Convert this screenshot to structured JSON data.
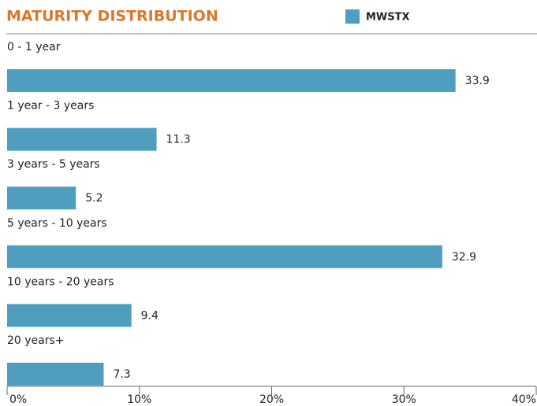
{
  "chart_data": {
    "type": "barh",
    "title": "MATURITY DISTRIBUTION",
    "categories": [
      "0 - 1 year",
      "1 year - 3 years",
      "3 years - 5 years",
      "5 years - 10 years",
      "10 years - 20 years",
      "20 years+"
    ],
    "series": [
      {
        "name": "MWSTX",
        "color": "#4f9dbf",
        "values": [
          33.9,
          11.3,
          5.2,
          32.9,
          9.4,
          7.3
        ]
      }
    ],
    "xlim": [
      0,
      40
    ],
    "xticks": [
      {
        "value": 0,
        "label": "0%"
      },
      {
        "value": 10,
        "label": "10%"
      },
      {
        "value": 20,
        "label": "20%"
      },
      {
        "value": 30,
        "label": "30%"
      },
      {
        "value": 40,
        "label": "40%"
      }
    ]
  }
}
